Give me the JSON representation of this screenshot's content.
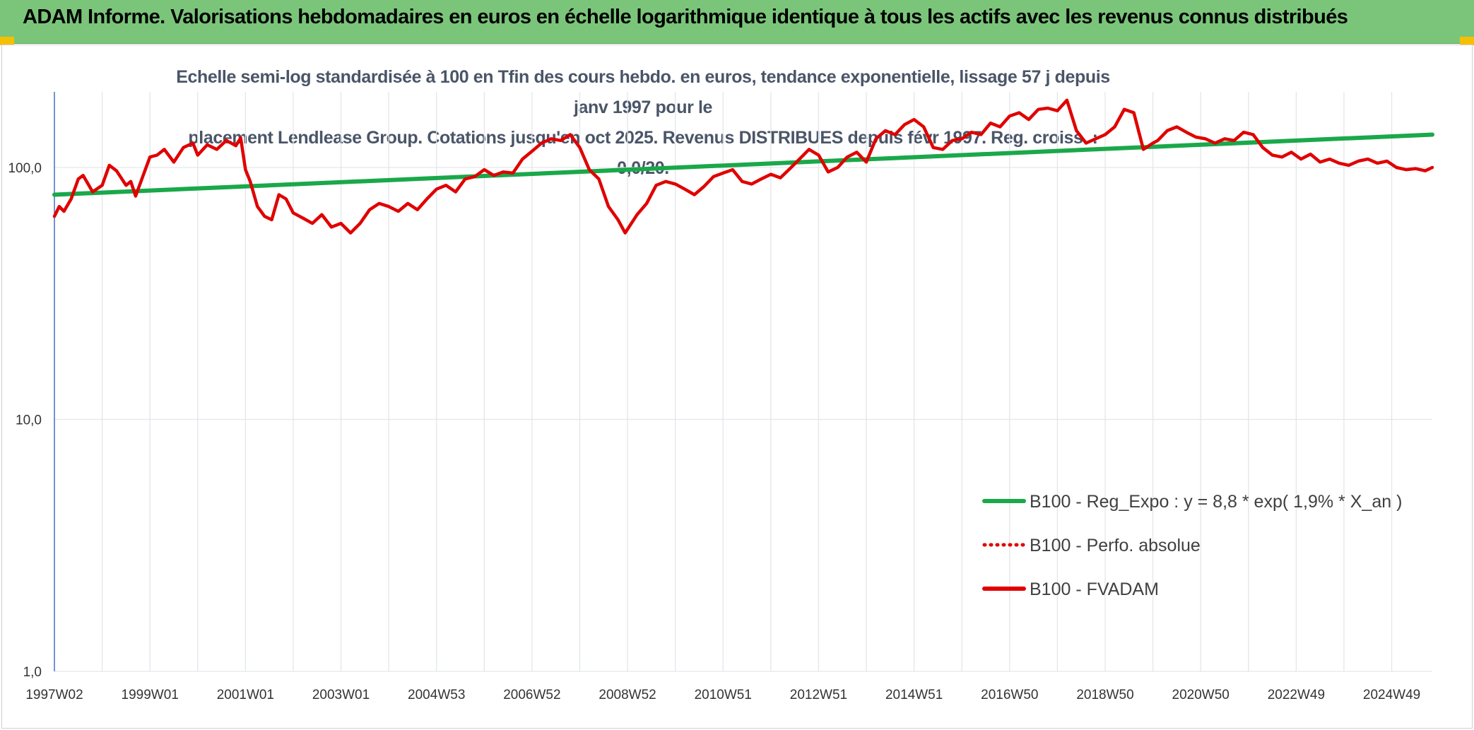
{
  "header": {
    "title": "ADAM Informe. Valorisations hebdomadaires en euros en échelle logarithmique identique à tous les actifs avec les revenus connus distribués",
    "background_color": "#7ac57a",
    "corner_color": "#f5c000"
  },
  "chart_data": {
    "type": "line",
    "title": "Echelle semi-log standardisée à 100 en Tfin des cours hebdo. en euros, tendance exponentielle, lissage 57 j depuis janv 1997 pour le placement Lendlease Group. Cotations jusqu'en oct 2025. Revenus DISTRIBUES depuis févr 1997. Reg. croiss. : 0,0/20.",
    "title_lines": [
      "Echelle semi-log standardisée à 100 en Tfin des cours hebdo. en euros, tendance exponentielle, lissage 57 j depuis janv 1997 pour le",
      "placement Lendlease Group. Cotations jusqu'en oct 2025. Revenus DISTRIBUES depuis févr 1997. Reg. croiss. : 0,0/20."
    ],
    "y_scale": "log",
    "ylim": [
      1,
      200
    ],
    "xlim": [
      1997.0,
      2025.85
    ],
    "grid": true,
    "legend_position": "right",
    "y_ticks": [
      {
        "value": 1,
        "label": "1,0"
      },
      {
        "value": 10,
        "label": "10,0"
      },
      {
        "value": 100,
        "label": "100,0"
      }
    ],
    "x_ticks": [
      {
        "value": 1997.0,
        "label": "1997W02"
      },
      {
        "value": 1999.0,
        "label": "1999W01"
      },
      {
        "value": 2001.0,
        "label": "2001W01"
      },
      {
        "value": 2003.0,
        "label": "2003W01"
      },
      {
        "value": 2005.0,
        "label": "2004W53"
      },
      {
        "value": 2007.0,
        "label": "2006W52"
      },
      {
        "value": 2009.0,
        "label": "2008W52"
      },
      {
        "value": 2011.0,
        "label": "2010W51"
      },
      {
        "value": 2013.0,
        "label": "2012W51"
      },
      {
        "value": 2015.0,
        "label": "2014W51"
      },
      {
        "value": 2017.0,
        "label": "2016W50"
      },
      {
        "value": 2019.0,
        "label": "2018W50"
      },
      {
        "value": 2021.0,
        "label": "2020W50"
      },
      {
        "value": 2023.0,
        "label": "2022W49"
      },
      {
        "value": 2025.0,
        "label": "2024W49"
      }
    ],
    "series": [
      {
        "name": "B100 - Reg_Expo : y = 8,8 * exp( 1,9% *  X_an )",
        "color": "#1aa84a",
        "style": "solid",
        "x": [
          1997.0,
          2025.85
        ],
        "y": [
          78,
          135
        ]
      },
      {
        "name": "B100 - Perfo. absolue",
        "color": "#e00000",
        "style": "dotted",
        "x": [],
        "y": []
      },
      {
        "name": "B100 - FVADAM",
        "color": "#e00000",
        "style": "solid",
        "x": [
          1997.0,
          1997.1,
          1997.2,
          1997.35,
          1997.5,
          1997.6,
          1997.8,
          1998.0,
          1998.15,
          1998.3,
          1998.5,
          1998.6,
          1998.7,
          1998.85,
          1999.0,
          1999.15,
          1999.3,
          1999.5,
          1999.7,
          1999.9,
          2000.0,
          2000.2,
          2000.4,
          2000.6,
          2000.8,
          2000.9,
          2001.0,
          2001.1,
          2001.25,
          2001.4,
          2001.55,
          2001.7,
          2001.85,
          2002.0,
          2002.2,
          2002.4,
          2002.6,
          2002.8,
          2003.0,
          2003.2,
          2003.4,
          2003.6,
          2003.8,
          2004.0,
          2004.2,
          2004.4,
          2004.6,
          2004.8,
          2005.0,
          2005.2,
          2005.4,
          2005.6,
          2005.8,
          2006.0,
          2006.2,
          2006.4,
          2006.6,
          2006.8,
          2007.0,
          2007.2,
          2007.4,
          2007.6,
          2007.8,
          2008.0,
          2008.2,
          2008.4,
          2008.6,
          2008.8,
          2008.95,
          2009.2,
          2009.4,
          2009.6,
          2009.8,
          2010.0,
          2010.2,
          2010.4,
          2010.6,
          2010.8,
          2011.0,
          2011.2,
          2011.4,
          2011.6,
          2011.8,
          2012.0,
          2012.2,
          2012.4,
          2012.6,
          2012.8,
          2013.0,
          2013.2,
          2013.4,
          2013.6,
          2013.8,
          2014.0,
          2014.2,
          2014.4,
          2014.6,
          2014.8,
          2015.0,
          2015.2,
          2015.4,
          2015.6,
          2015.8,
          2016.0,
          2016.2,
          2016.4,
          2016.6,
          2016.8,
          2017.0,
          2017.2,
          2017.4,
          2017.6,
          2017.8,
          2018.0,
          2018.2,
          2018.4,
          2018.6,
          2018.8,
          2019.0,
          2019.2,
          2019.4,
          2019.6,
          2019.8,
          2020.0,
          2020.1,
          2020.3,
          2020.5,
          2020.7,
          2020.9,
          2021.1,
          2021.3,
          2021.5,
          2021.7,
          2021.9,
          2022.1,
          2022.3,
          2022.5,
          2022.7,
          2022.9,
          2023.1,
          2023.3,
          2023.5,
          2023.7,
          2023.9,
          2024.1,
          2024.3,
          2024.5,
          2024.7,
          2024.9,
          2025.1,
          2025.3,
          2025.5,
          2025.7,
          2025.85
        ],
        "y": [
          64,
          70,
          67,
          75,
          90,
          93,
          80,
          85,
          102,
          97,
          85,
          88,
          77,
          92,
          110,
          112,
          118,
          105,
          120,
          125,
          112,
          123,
          118,
          128,
          122,
          131,
          98,
          88,
          70,
          64,
          62,
          78,
          75,
          66,
          63,
          60,
          65,
          58,
          60,
          55,
          60,
          68,
          72,
          70,
          67,
          72,
          68,
          75,
          82,
          85,
          80,
          90,
          92,
          98,
          93,
          96,
          95,
          108,
          116,
          125,
          130,
          128,
          135,
          120,
          98,
          90,
          70,
          62,
          55,
          65,
          72,
          85,
          88,
          86,
          82,
          78,
          84,
          92,
          95,
          98,
          88,
          86,
          90,
          94,
          91,
          99,
          108,
          118,
          112,
          96,
          100,
          110,
          115,
          105,
          130,
          140,
          135,
          148,
          155,
          145,
          120,
          118,
          128,
          130,
          138,
          135,
          150,
          145,
          160,
          165,
          155,
          170,
          172,
          168,
          185,
          140,
          125,
          130,
          135,
          145,
          170,
          165,
          118,
          125,
          128,
          140,
          145,
          138,
          132,
          130,
          125,
          130,
          128,
          138,
          135,
          120,
          112,
          110,
          115,
          108,
          113,
          105,
          108,
          104,
          102,
          106,
          108,
          104,
          106,
          100,
          98,
          99,
          97,
          100
        ]
      }
    ]
  }
}
